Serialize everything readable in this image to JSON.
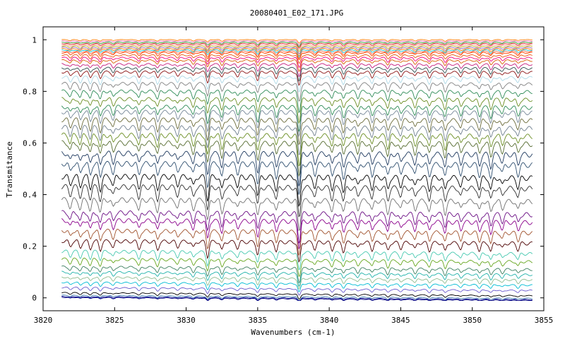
{
  "chart_data": {
    "type": "line",
    "title": "20080401_E02_171.JPG",
    "xlabel": "Wavenumbers (cm-1)",
    "ylabel": "Transmitance",
    "xlim": [
      3820,
      3855
    ],
    "ylim": [
      -0.05,
      1.05
    ],
    "x_ticks": [
      3820,
      3825,
      3830,
      3835,
      3840,
      3845,
      3850,
      3855
    ],
    "y_ticks": [
      0,
      0.2,
      0.4,
      0.6,
      0.8,
      1
    ],
    "x_tick_labels": [
      "3820",
      "3825",
      "3830",
      "3835",
      "3840",
      "3845",
      "3850",
      "3855"
    ],
    "y_tick_labels": [
      "0",
      "0.2",
      "0.4",
      "0.6",
      "0.8",
      "1"
    ],
    "grid": false,
    "legend": "none",
    "x_range_of_data": [
      3821.3,
      3854.2
    ],
    "absorption_lines_cm1": [
      3821.9,
      3822.6,
      3823.3,
      3824.0,
      3824.9,
      3826.7,
      3828.0,
      3829.4,
      3830.5,
      3831.5,
      3832.5,
      3833.6,
      3835.0,
      3836.3,
      3837.9,
      3839.0,
      3840.2,
      3841.0,
      3842.0,
      3843.0,
      3844.1,
      3845.0,
      3846.0,
      3847.0,
      3848.1,
      3849.2,
      3850.5,
      3851.3,
      3852.1,
      3853.2
    ],
    "series": [
      {
        "level": 1.0,
        "color": "#ff7f0e"
      },
      {
        "level": 0.995,
        "color": "#e377c2"
      },
      {
        "level": 0.99,
        "color": "#2ca02c"
      },
      {
        "level": 0.985,
        "color": "#d62728"
      },
      {
        "level": 0.98,
        "color": "#ff9896"
      },
      {
        "level": 0.975,
        "color": "#bcbd22"
      },
      {
        "level": 0.97,
        "color": "#9467bd"
      },
      {
        "level": 0.965,
        "color": "#ff7f0e"
      },
      {
        "level": 0.96,
        "color": "#17becf"
      },
      {
        "level": 0.955,
        "color": "#ff6b4a"
      },
      {
        "level": 0.95,
        "color": "#ff4500"
      },
      {
        "level": 0.94,
        "color": "#e6550d"
      },
      {
        "level": 0.93,
        "color": "#f0027f"
      },
      {
        "level": 0.92,
        "color": "#d95f02"
      },
      {
        "level": 0.905,
        "color": "#c51b7d"
      },
      {
        "level": 0.89,
        "color": "#2f4f4f"
      },
      {
        "level": 0.875,
        "color": "#8c1515"
      },
      {
        "level": 0.855,
        "color": "#add8e6"
      },
      {
        "level": 0.83,
        "color": "#808080"
      },
      {
        "level": 0.8,
        "color": "#2e8b57"
      },
      {
        "level": 0.77,
        "color": "#6b8e23"
      },
      {
        "level": 0.74,
        "color": "#2e8b57"
      },
      {
        "level": 0.72,
        "color": "#778899"
      },
      {
        "level": 0.69,
        "color": "#6b6b3a"
      },
      {
        "level": 0.66,
        "color": "#708090"
      },
      {
        "level": 0.63,
        "color": "#6b8e23"
      },
      {
        "level": 0.6,
        "color": "#556b2f"
      },
      {
        "level": 0.56,
        "color": "#1f3a5f"
      },
      {
        "level": 0.52,
        "color": "#2f4f6f"
      },
      {
        "level": 0.47,
        "color": "#000000"
      },
      {
        "level": 0.43,
        "color": "#303030"
      },
      {
        "level": 0.38,
        "color": "#707070"
      },
      {
        "level": 0.33,
        "color": "#6a0d83"
      },
      {
        "level": 0.3,
        "color": "#8b008b"
      },
      {
        "level": 0.26,
        "color": "#a0522d"
      },
      {
        "level": 0.22,
        "color": "#4b0000"
      },
      {
        "level": 0.18,
        "color": "#48c9b0"
      },
      {
        "level": 0.15,
        "color": "#66a61e"
      },
      {
        "level": 0.12,
        "color": "#3c7f5f"
      },
      {
        "level": 0.1,
        "color": "#20b2aa"
      },
      {
        "level": 0.08,
        "color": "#8fbc8f"
      },
      {
        "level": 0.06,
        "color": "#00bcd4"
      },
      {
        "level": 0.04,
        "color": "#6a5acd"
      },
      {
        "level": 0.02,
        "color": "#000000"
      },
      {
        "level": 0.01,
        "color": "#4682b4"
      },
      {
        "level": 0.005,
        "color": "#00008b"
      },
      {
        "level": 0.002,
        "color": "#000080"
      }
    ]
  }
}
